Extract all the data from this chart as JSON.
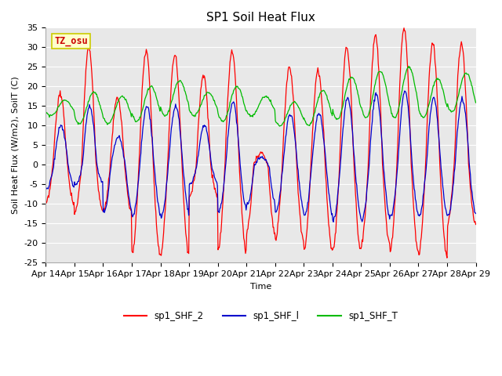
{
  "title": "SP1 Soil Heat Flux",
  "xlabel": "Time",
  "ylabel": "Soil Heat Flux (W/m2), SoilT (C)",
  "ylim": [
    -25,
    35
  ],
  "xtick_labels": [
    "Apr 14",
    "Apr 15",
    "Apr 16",
    "Apr 17",
    "Apr 18",
    "Apr 19",
    "Apr 20",
    "Apr 21",
    "Apr 22",
    "Apr 23",
    "Apr 24",
    "Apr 25",
    "Apr 26",
    "Apr 27",
    "Apr 28",
    "Apr 29"
  ],
  "legend_labels": [
    "sp1_SHF_2",
    "sp1_SHF_l",
    "sp1_SHF_T"
  ],
  "color_red": "#ff0000",
  "color_blue": "#0000cc",
  "color_green": "#00bb00",
  "annotation_text": "TZ_osu",
  "annotation_color": "#cc0000",
  "annotation_bg": "#ffffcc",
  "annotation_border": "#cccc00",
  "fig_bg": "#ffffff",
  "plot_bg": "#e8e8e8",
  "grid_color": "#ffffff",
  "title_fontsize": 11,
  "label_fontsize": 8,
  "tick_fontsize": 8,
  "legend_fontsize": 8.5
}
